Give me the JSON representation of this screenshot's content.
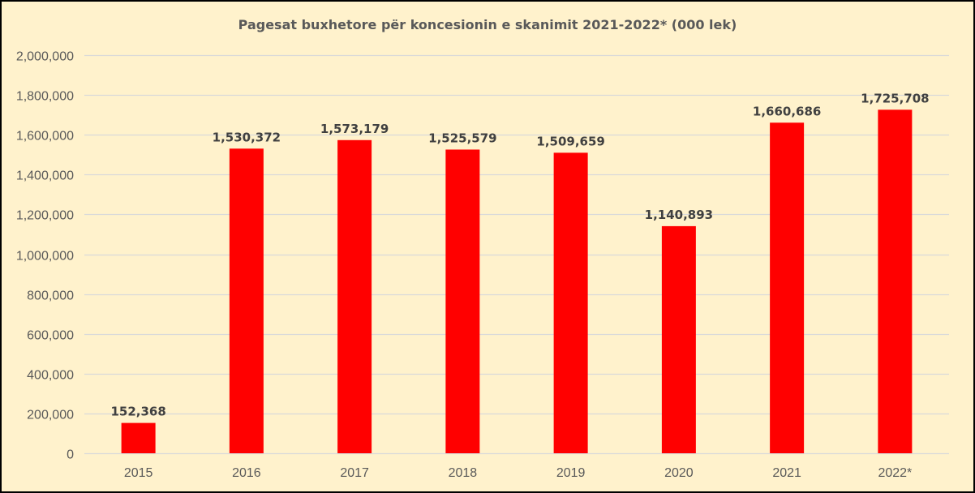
{
  "chart_data": {
    "type": "bar",
    "title": "Pagesat buxhetore për koncesionin e skanimit 2021-2022* (000 lek)",
    "xlabel": "",
    "ylabel": "",
    "categories": [
      "2015",
      "2016",
      "2017",
      "2018",
      "2019",
      "2020",
      "2021",
      "2022*"
    ],
    "values": [
      152368,
      1530372,
      1573179,
      1525579,
      1509659,
      1140893,
      1660686,
      1725708
    ],
    "value_labels": [
      "152,368",
      "1,530,372",
      "1,573,179",
      "1,525,579",
      "1,509,659",
      "1,140,893",
      "1,660,686",
      "1,725,708"
    ],
    "ylim": [
      0,
      2000000
    ],
    "yticks": [
      0,
      200000,
      400000,
      600000,
      800000,
      1000000,
      1200000,
      1400000,
      1600000,
      1800000,
      2000000
    ],
    "ytick_labels": [
      "0",
      "200,000",
      "400,000",
      "600,000",
      "800,000",
      "1,000,000",
      "1,200,000",
      "1,400,000",
      "1,600,000",
      "1,800,000",
      "2,000,000"
    ],
    "grid": true,
    "legend": "none",
    "colors": {
      "bar": "#ff0000",
      "background": "#fff2cc",
      "gridline": "#d9d9d9",
      "border": "#000000",
      "text": "#595959",
      "data_label": "#404040"
    }
  }
}
